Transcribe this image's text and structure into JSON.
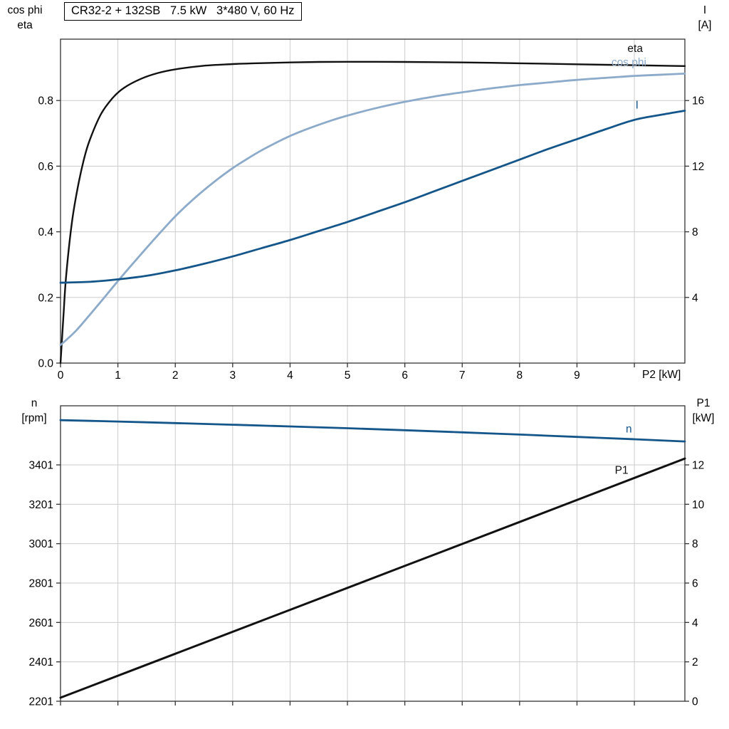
{
  "title_box": {
    "text": "CR32-2 + 132SB   7.5 kW   3*480 V, 60 Hz"
  },
  "top_chart_labels": {
    "left_line1": "cos phi",
    "left_line2": "eta",
    "right_line1": "I",
    "right_line2": "[A]",
    "x_axis": "P2 [kW]"
  },
  "bottom_chart_labels": {
    "left_line1": "n",
    "left_line2": "[rpm]",
    "right_line1": "P1",
    "right_line2": "[kW]"
  },
  "colors": {
    "black_curve": "#111111",
    "dark_blue": "#15568a",
    "light_blue": "#8cabca",
    "grid": "#cccccc",
    "axis": "#333333"
  },
  "chart_data": [
    {
      "type": "line",
      "title": "CR32-2 + 132SB   7.5 kW   3*480 V, 60 Hz",
      "x_label": "P2 [kW]",
      "xlim": [
        0,
        10.88
      ],
      "x_tick_values": [
        0,
        1,
        2,
        3,
        4,
        5,
        6,
        7,
        8,
        9,
        10
      ],
      "x_tick_labels": [
        "0",
        "1",
        "2",
        "3",
        "4",
        "5",
        "6",
        "7",
        "8",
        "9",
        ""
      ],
      "x_grid_values": [
        1,
        2,
        3,
        4,
        5,
        6,
        7,
        8,
        9,
        10
      ],
      "left_axis": {
        "label": "cos phi / eta",
        "lim": [
          0,
          0.987
        ],
        "tick_values": [
          0,
          0.2,
          0.4,
          0.6,
          0.8
        ],
        "tick_labels": [
          "0.0",
          "0.2",
          "0.4",
          "0.6",
          "0.8"
        ]
      },
      "right_axis": {
        "label": "I [A]",
        "lim": [
          0,
          19.74
        ],
        "tick_values": [
          4,
          8,
          12,
          16
        ],
        "tick_labels": [
          "4",
          "8",
          "12",
          "16"
        ]
      },
      "grid": true,
      "legend_position": "curve-end-labels",
      "series": [
        {
          "name": "eta",
          "axis": "left",
          "color": "#111111",
          "width": 2.4,
          "label_pos": [
            9.88,
            0.948
          ],
          "points": [
            [
              0,
              0
            ],
            [
              0.05,
              0.14
            ],
            [
              0.1,
              0.27
            ],
            [
              0.2,
              0.43
            ],
            [
              0.3,
              0.535
            ],
            [
              0.4,
              0.615
            ],
            [
              0.5,
              0.675
            ],
            [
              0.7,
              0.757
            ],
            [
              0.9,
              0.806
            ],
            [
              1.1,
              0.838
            ],
            [
              1.4,
              0.866
            ],
            [
              1.7,
              0.884
            ],
            [
              2,
              0.895
            ],
            [
              2.5,
              0.906
            ],
            [
              3,
              0.911
            ],
            [
              3.5,
              0.914
            ],
            [
              4,
              0.916
            ],
            [
              4.5,
              0.9175
            ],
            [
              5,
              0.918
            ],
            [
              5.5,
              0.918
            ],
            [
              6,
              0.9175
            ],
            [
              6.5,
              0.917
            ],
            [
              7,
              0.916
            ],
            [
              7.5,
              0.915
            ],
            [
              8,
              0.9135
            ],
            [
              8.5,
              0.912
            ],
            [
              9,
              0.9105
            ],
            [
              9.5,
              0.909
            ],
            [
              10,
              0.9075
            ],
            [
              10.5,
              0.906
            ],
            [
              10.88,
              0.905
            ]
          ]
        },
        {
          "name": "cos phi",
          "axis": "left",
          "color": "#8cabca",
          "width": 2.8,
          "label_pos": [
            9.6,
            0.906
          ],
          "points": [
            [
              0,
              0.055
            ],
            [
              0.25,
              0.095
            ],
            [
              0.5,
              0.145
            ],
            [
              0.75,
              0.197
            ],
            [
              1,
              0.25
            ],
            [
              1.25,
              0.301
            ],
            [
              1.5,
              0.351
            ],
            [
              1.75,
              0.4
            ],
            [
              2,
              0.447
            ],
            [
              2.25,
              0.489
            ],
            [
              2.5,
              0.527
            ],
            [
              2.75,
              0.562
            ],
            [
              3,
              0.594
            ],
            [
              3.25,
              0.622
            ],
            [
              3.5,
              0.648
            ],
            [
              3.75,
              0.671
            ],
            [
              4,
              0.692
            ],
            [
              4.25,
              0.71
            ],
            [
              4.5,
              0.726
            ],
            [
              4.75,
              0.741
            ],
            [
              5,
              0.754
            ],
            [
              5.5,
              0.777
            ],
            [
              6,
              0.796
            ],
            [
              6.5,
              0.812
            ],
            [
              7,
              0.825
            ],
            [
              7.5,
              0.837
            ],
            [
              8,
              0.847
            ],
            [
              8.5,
              0.855
            ],
            [
              9,
              0.863
            ],
            [
              9.5,
              0.869
            ],
            [
              10,
              0.875
            ],
            [
              10.5,
              0.879
            ],
            [
              10.88,
              0.882
            ]
          ]
        },
        {
          "name": "I",
          "axis": "right",
          "color": "#15568a",
          "width": 2.8,
          "label_pos": [
            10.02,
            15.5
          ],
          "points": [
            [
              0,
              4.9
            ],
            [
              0.5,
              4.95
            ],
            [
              1,
              5.1
            ],
            [
              1.5,
              5.32
            ],
            [
              2,
              5.65
            ],
            [
              2.5,
              6.05
            ],
            [
              3,
              6.5
            ],
            [
              3.5,
              7
            ],
            [
              4,
              7.5
            ],
            [
              4.5,
              8.05
            ],
            [
              5,
              8.6
            ],
            [
              5.5,
              9.2
            ],
            [
              6,
              9.8
            ],
            [
              6.5,
              10.45
            ],
            [
              7,
              11.1
            ],
            [
              7.5,
              11.75
            ],
            [
              8,
              12.4
            ],
            [
              8.5,
              13.05
            ],
            [
              9,
              13.65
            ],
            [
              9.5,
              14.25
            ],
            [
              10,
              14.82
            ],
            [
              10.5,
              15.15
            ],
            [
              10.88,
              15.38
            ]
          ]
        }
      ]
    },
    {
      "type": "line",
      "title": "",
      "x_label": "",
      "xlim": [
        0,
        10.88
      ],
      "x_tick_values": [
        0,
        1,
        2,
        3,
        4,
        5,
        6,
        7,
        8,
        9,
        10
      ],
      "x_tick_labels": [
        "",
        "",
        "",
        "",
        "",
        "",
        "",
        "",
        "",
        "",
        ""
      ],
      "x_grid_values": [
        1,
        2,
        3,
        4,
        5,
        6,
        7,
        8,
        9,
        10
      ],
      "left_axis": {
        "label": "n [rpm]",
        "lim": [
          2201,
          3701
        ],
        "tick_values": [
          2201,
          2401,
          2601,
          2801,
          3001,
          3201,
          3401
        ],
        "tick_labels": [
          "2201",
          "2401",
          "2601",
          "2801",
          "3001",
          "3201",
          "3401"
        ]
      },
      "right_axis": {
        "label": "P1 [kW]",
        "lim": [
          0,
          15
        ],
        "tick_values": [
          0,
          2,
          4,
          6,
          8,
          10,
          12
        ],
        "tick_labels": [
          "0",
          "2",
          "4",
          "6",
          "8",
          "10",
          "12"
        ]
      },
      "grid": true,
      "legend_position": "curve-end-labels",
      "series": [
        {
          "name": "n",
          "axis": "left",
          "color": "#15568a",
          "width": 2.8,
          "label_pos": [
            9.85,
            3565
          ],
          "points": [
            [
              0,
              3628
            ],
            [
              1,
              3621
            ],
            [
              2,
              3613
            ],
            [
              3,
              3605
            ],
            [
              4,
              3596
            ],
            [
              5,
              3587
            ],
            [
              6,
              3577
            ],
            [
              7,
              3566
            ],
            [
              8,
              3555
            ],
            [
              9,
              3543
            ],
            [
              10,
              3531
            ],
            [
              10.88,
              3520
            ]
          ]
        },
        {
          "name": "P1",
          "axis": "right",
          "color": "#111111",
          "width": 3,
          "label_pos": [
            9.66,
            11.55
          ],
          "points": [
            [
              0,
              0.18
            ],
            [
              2,
              2.41
            ],
            [
              4,
              4.64
            ],
            [
              6,
              6.87
            ],
            [
              8,
              9.1
            ],
            [
              10,
              11.34
            ],
            [
              10.88,
              12.32
            ]
          ]
        }
      ]
    }
  ]
}
